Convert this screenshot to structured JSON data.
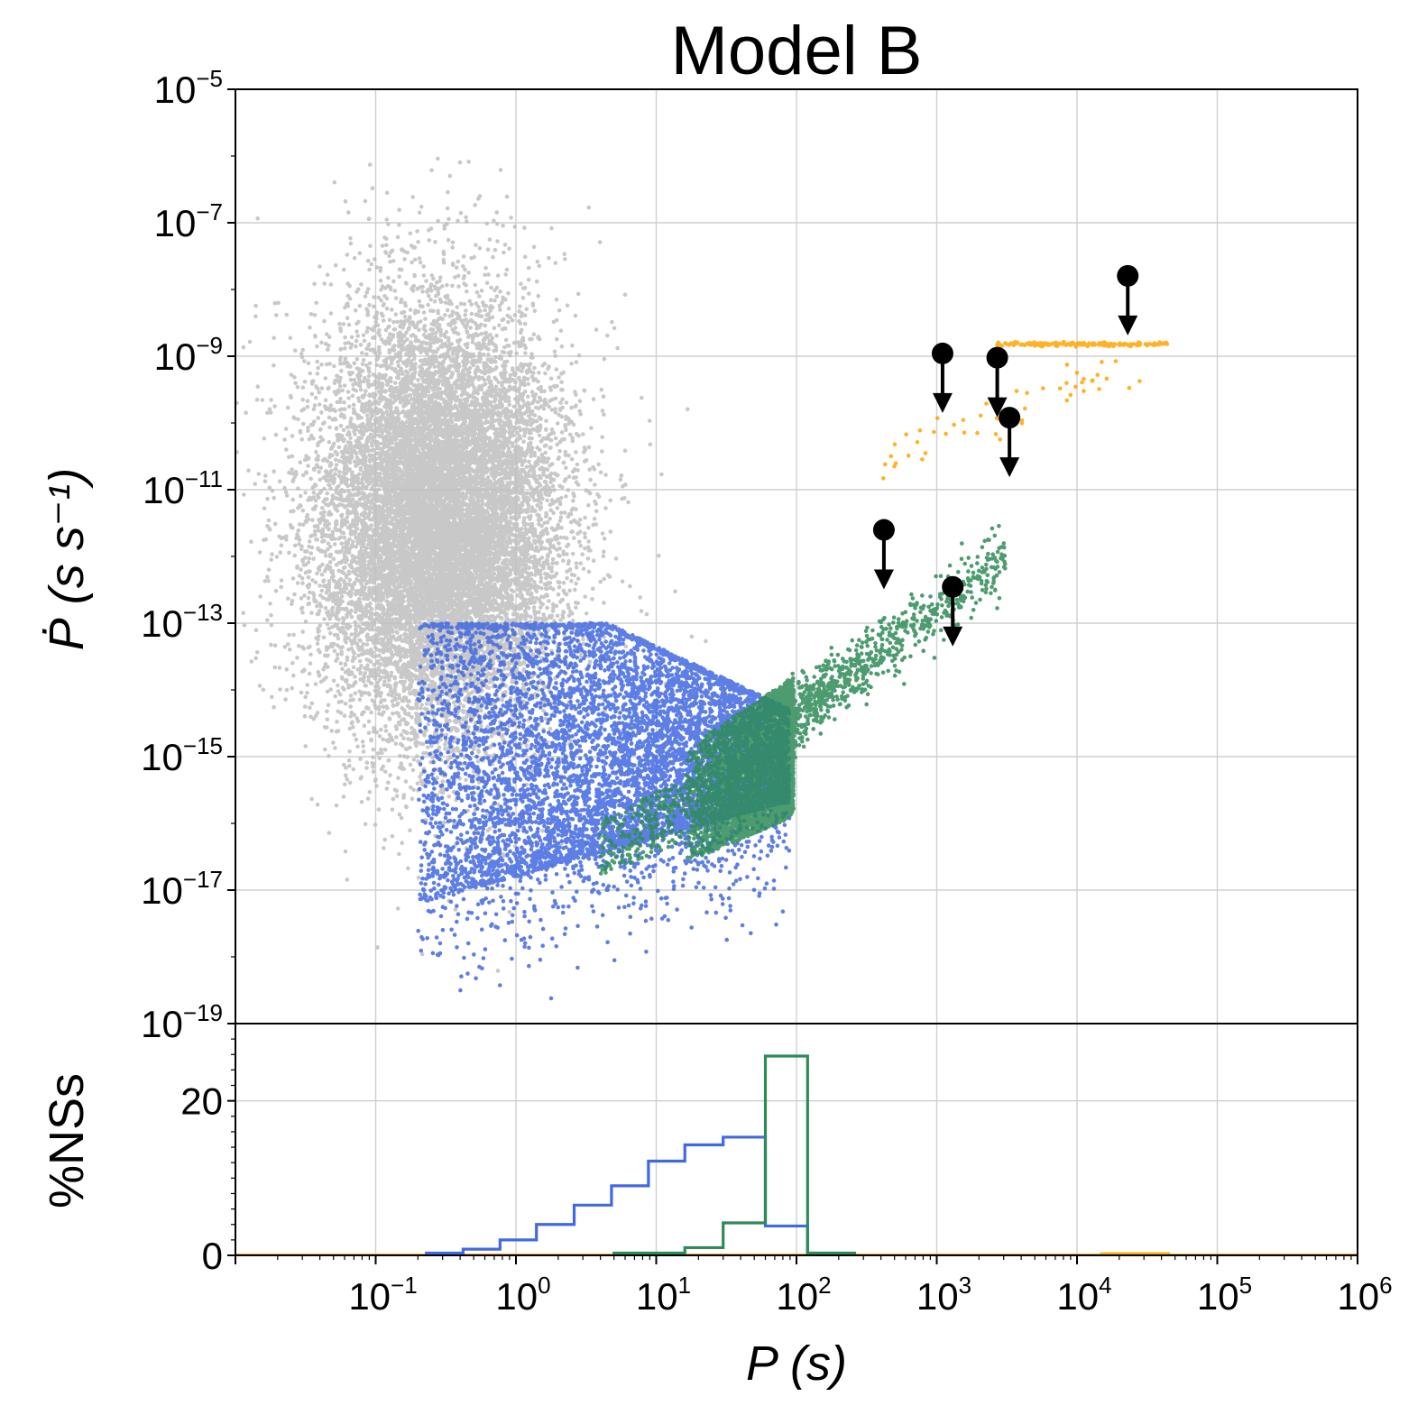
{
  "chart_data": [
    {
      "type": "scatter",
      "panel": "top",
      "title": "Model B",
      "xlabel": "P (s)",
      "ylabel": "Ṗ (s s⁻¹)",
      "xscale": "log",
      "yscale": "log",
      "xlim": [
        0.01,
        1000000
      ],
      "ylim": [
        1e-19,
        1e-05
      ],
      "grid": true,
      "ytick_labels": [
        "10^-5",
        "10^-7",
        "10^-9",
        "10^-11",
        "10^-13",
        "10^-15",
        "10^-17",
        "10^-19"
      ],
      "series": [
        {
          "name": "gray population",
          "color": "#bebebe",
          "approx_range": {
            "P": [
              0.015,
              4
            ],
            "Pdot": [
              1e-18,
              3e-06
            ]
          },
          "center": {
            "logP": -0.55,
            "logPdot": -11.5
          },
          "spread": {
            "logP": 0.42,
            "logPdot": 1.6
          },
          "count": 14000
        },
        {
          "name": "blue population",
          "color": "#4169e1",
          "approx_range": {
            "P": [
              0.1,
              90
            ],
            "Pdot": [
              1e-19,
              1e-13
            ]
          },
          "bound_upper_line": {
            "from": [
              3.5,
              1e-13
            ],
            "to": [
              80,
              3e-15
            ]
          },
          "count": 8000
        },
        {
          "name": "green population",
          "color": "#2e8b57",
          "approx_range": {
            "P": [
              3,
              3200
            ],
            "Pdot": [
              1e-17,
              1e-11
            ]
          },
          "count": 5000
        },
        {
          "name": "orange population",
          "color": "#ffa500",
          "approx_range": {
            "P": [
              400,
              45000
            ],
            "Pdot": [
              2.5e-11,
              1.5e-09
            ]
          },
          "plateau_Pdot": 1.5e-09,
          "plateau_P_range": [
            2600,
            45000
          ],
          "count": 220
        },
        {
          "name": "upper limits",
          "color": "#000000",
          "marker": "circle with downward arrow",
          "points": [
            {
              "P": 23000,
              "Pdot": 1.6e-08
            },
            {
              "P": 1100,
              "Pdot": 1.1e-09
            },
            {
              "P": 2700,
              "Pdot": 9.5e-10
            },
            {
              "P": 3300,
              "Pdot": 1.2e-10
            },
            {
              "P": 420,
              "Pdot": 2.5e-12
            },
            {
              "P": 1300,
              "Pdot": 3.5e-13
            }
          ]
        }
      ]
    },
    {
      "type": "histogram",
      "panel": "bottom",
      "xlabel": "P (s)",
      "ylabel": "%NSs",
      "xscale": "log",
      "xlim": [
        0.01,
        1000000
      ],
      "ylim": [
        0,
        30
      ],
      "yticks": [
        0,
        20
      ],
      "grid": true,
      "xtick_labels": [
        "10^-1",
        "10^0",
        "10^1",
        "10^2",
        "10^3",
        "10^4",
        "10^5",
        "10^6"
      ],
      "series": [
        {
          "name": "blue",
          "color": "#4169e1",
          "bins": [
            [
              0.23,
              0.42,
              0.3
            ],
            [
              0.42,
              0.77,
              0.8
            ],
            [
              0.77,
              1.4,
              2.0
            ],
            [
              1.4,
              2.6,
              4.0
            ],
            [
              2.6,
              4.8,
              6.5
            ],
            [
              4.8,
              8.8,
              9.0
            ],
            [
              8.8,
              16,
              12.2
            ],
            [
              16,
              30,
              14.3
            ],
            [
              30,
              60,
              15.3
            ],
            [
              60,
              120,
              3.8
            ]
          ]
        },
        {
          "name": "green",
          "color": "#2e8b57",
          "bins": [
            [
              5,
              16,
              0.3
            ],
            [
              16,
              30,
              1.0
            ],
            [
              30,
              60,
              4.2
            ],
            [
              60,
              120,
              25.8
            ],
            [
              120,
              260,
              0.3
            ]
          ]
        },
        {
          "name": "orange",
          "color": "#ffa500",
          "bins": [
            [
              15000,
              45000,
              0.2
            ]
          ]
        }
      ]
    }
  ]
}
